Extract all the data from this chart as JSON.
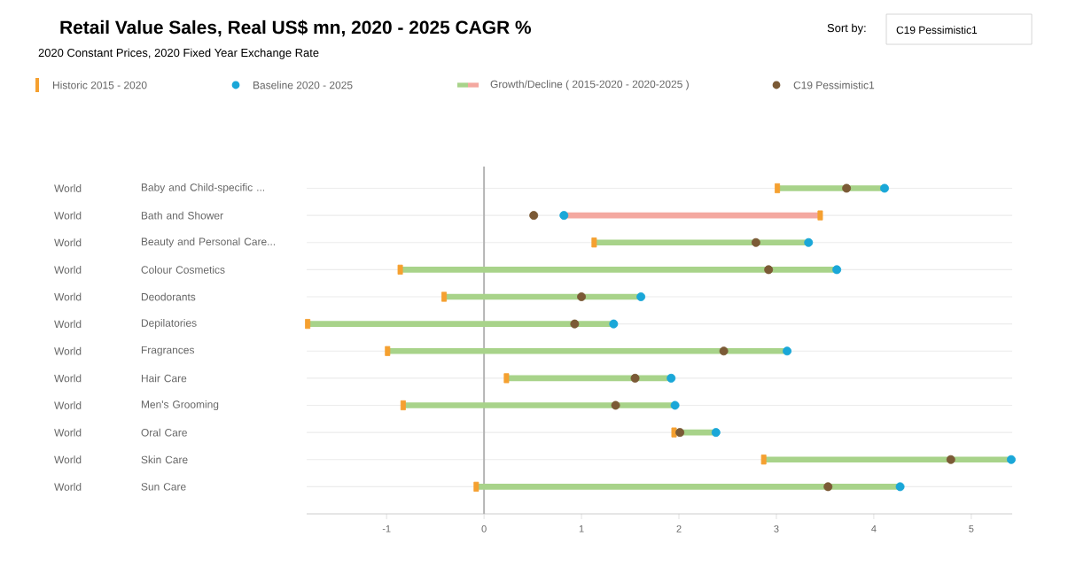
{
  "chart_data": {
    "type": "scatter",
    "orientation": "horizontal",
    "title": "Retail Value Sales, Real US$ mn, 2020 - 2025 CAGR %",
    "subtitle": "2020 Constant Prices, 2020 Fixed Year Exchange Rate",
    "categories": [
      "Baby and Child-specific ...",
      "Bath and Shower",
      "Beauty and Personal Care...",
      "Colour Cosmetics",
      "Deodorants",
      "Depilatories",
      "Fragrances",
      "Hair Care",
      "Men's Grooming",
      "Oral Care",
      "Skin Care",
      "Sun Care"
    ],
    "annotations": [
      "World",
      "World",
      "World",
      "World",
      "World",
      "World",
      "World",
      "World",
      "World",
      "World",
      "World",
      "World",
      "Sort by:",
      "C19 Pessimistic1"
    ],
    "series": [
      {
        "name": "Historic 2015 - 2020",
        "marker": "square",
        "color": "#f5a030",
        "values": [
          3.01,
          3.45,
          1.13,
          -0.86,
          -0.41,
          -1.81,
          -0.99,
          0.23,
          -0.83,
          1.95,
          2.87,
          -0.08
        ]
      },
      {
        "name": "Baseline 2020 - 2025",
        "marker": "circle",
        "color": "#1aa7d8",
        "values": [
          4.11,
          0.82,
          3.33,
          3.62,
          1.61,
          1.33,
          3.11,
          1.92,
          1.96,
          2.38,
          5.41,
          4.27
        ]
      },
      {
        "name": "Growth/Decline ( 2015-2020 - 2020-2025 )",
        "type": "bar",
        "color": "#a8d38a",
        "base": [
          3.01,
          3.45,
          1.13,
          -0.86,
          -0.41,
          -1.81,
          -0.99,
          0.23,
          -0.83,
          1.95,
          2.87,
          -0.08
        ],
        "values": [
          1.1,
          -2.63,
          2.2,
          4.48,
          2.02,
          3.14,
          4.1,
          1.69,
          2.79,
          0.43,
          2.54,
          4.35
        ],
        "colors": [
          "#a8d38a",
          "#f4a8a0",
          "#a8d38a",
          "#a8d38a",
          "#a8d38a",
          "#a8d38a",
          "#a8d38a",
          "#a8d38a",
          "#a8d38a",
          "#a8d38a",
          "#a8d38a",
          "#a8d38a"
        ]
      },
      {
        "name": "C19 Pessimistic1",
        "marker": "circle",
        "color": "#7b5a36",
        "values": [
          3.72,
          0.51,
          2.79,
          2.92,
          1.0,
          0.93,
          2.46,
          1.55,
          1.35,
          2.01,
          4.79,
          3.53
        ]
      }
    ],
    "xlim": [
      -1.82,
      5.42
    ],
    "xticks": [
      -1,
      0,
      1,
      2,
      3,
      4,
      5
    ],
    "ref_lines": [
      {
        "axis": "x",
        "value": 0,
        "color": "#b4b4b4"
      }
    ],
    "grid": "y",
    "legend": "top"
  }
}
